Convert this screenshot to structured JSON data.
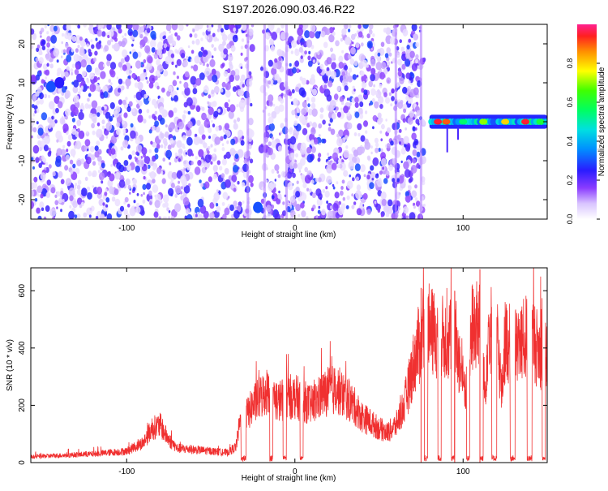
{
  "title": "S197.2026.090.03.46.R22",
  "chart_data": [
    {
      "type": "heatmap",
      "xlabel": "Height of straight line (km)",
      "ylabel": "Frequency (Hz)",
      "xlim": [
        -157,
        150
      ],
      "ylim": [
        -25,
        25
      ],
      "xticks": [
        -100,
        0,
        100
      ],
      "yticks": [
        -20,
        -10,
        0,
        10,
        20
      ],
      "colorbar": {
        "label": "Normalized spectral amplitude",
        "range": [
          0,
          1
        ],
        "ticks": [
          0,
          0.2,
          0.4,
          0.6,
          0.8
        ],
        "tick_labels": [
          "0.0",
          "0.2",
          "0.4",
          "0.6",
          "0.8"
        ]
      },
      "empty_region_x": [
        80,
        150
      ],
      "noise_region_x": [
        -157,
        77
      ],
      "vertical_gap_x": [
        -25,
        -20
      ],
      "carrier": {
        "x_range": [
          80,
          150
        ],
        "frequency": 0,
        "peaks": [
          {
            "x": 85,
            "amp": 0.95
          },
          {
            "x": 90,
            "amp": 0.9
          },
          {
            "x": 100,
            "amp": 0.55
          },
          {
            "x": 112,
            "amp": 0.7
          },
          {
            "x": 125,
            "amp": 0.8
          },
          {
            "x": 137,
            "amp": 0.95
          },
          {
            "x": 146,
            "amp": 0.6
          }
        ]
      },
      "hotspots": [
        {
          "x": -145,
          "y": 9,
          "amp": 0.3
        },
        {
          "x": -140,
          "y": 10,
          "amp": 0.25
        },
        {
          "x": -22,
          "y": -22,
          "amp": 0.3
        }
      ]
    },
    {
      "type": "line",
      "xlabel": "Height of straight line (km)",
      "ylabel": "SNR (10 * v/v)",
      "xlim": [
        -157,
        150
      ],
      "ylim": [
        0,
        680
      ],
      "xticks": [
        -100,
        0,
        100
      ],
      "yticks": [
        0,
        200,
        400,
        600
      ],
      "color": "#f03030",
      "series": [
        {
          "x": [
            -157,
            -140,
            -120,
            -100,
            -90,
            -85,
            -80,
            -75,
            -70,
            -60,
            -50,
            -40,
            -35,
            -33,
            -30,
            -28,
            -25,
            -20,
            -15,
            -10,
            -5,
            0,
            5,
            10,
            15,
            20,
            25,
            30,
            35,
            40,
            45,
            50,
            55,
            60,
            65,
            70,
            73,
            75,
            76,
            77,
            80,
            85,
            90,
            95,
            100,
            103,
            105,
            110,
            113,
            115,
            120,
            123,
            125,
            130,
            135,
            140,
            145,
            150
          ],
          "y": [
            20,
            25,
            30,
            40,
            70,
            120,
            130,
            80,
            50,
            45,
            40,
            35,
            55,
            130,
            180,
            170,
            200,
            230,
            260,
            210,
            230,
            230,
            215,
            200,
            230,
            250,
            255,
            230,
            200,
            160,
            140,
            120,
            105,
            130,
            200,
            330,
            400,
            420,
            480,
            500,
            460,
            440,
            430,
            450,
            280,
            250,
            470,
            480,
            240,
            470,
            460,
            240,
            430,
            400,
            420,
            450,
            390,
            360
          ]
        }
      ],
      "dropouts": [
        [
          -32,
          -29
        ],
        [
          -15,
          -13
        ],
        [
          -7,
          -5
        ],
        [
          3,
          5
        ],
        [
          77,
          79
        ],
        [
          85,
          87
        ],
        [
          93,
          95
        ],
        [
          102,
          104
        ],
        [
          110,
          112
        ],
        [
          117,
          120
        ],
        [
          128,
          131
        ],
        [
          138,
          141
        ],
        [
          147,
          149
        ]
      ],
      "spikes": [
        {
          "x": 110,
          "y": 675
        },
        {
          "x": 75,
          "y": 610
        },
        {
          "x": 95,
          "y": 600
        }
      ]
    }
  ]
}
